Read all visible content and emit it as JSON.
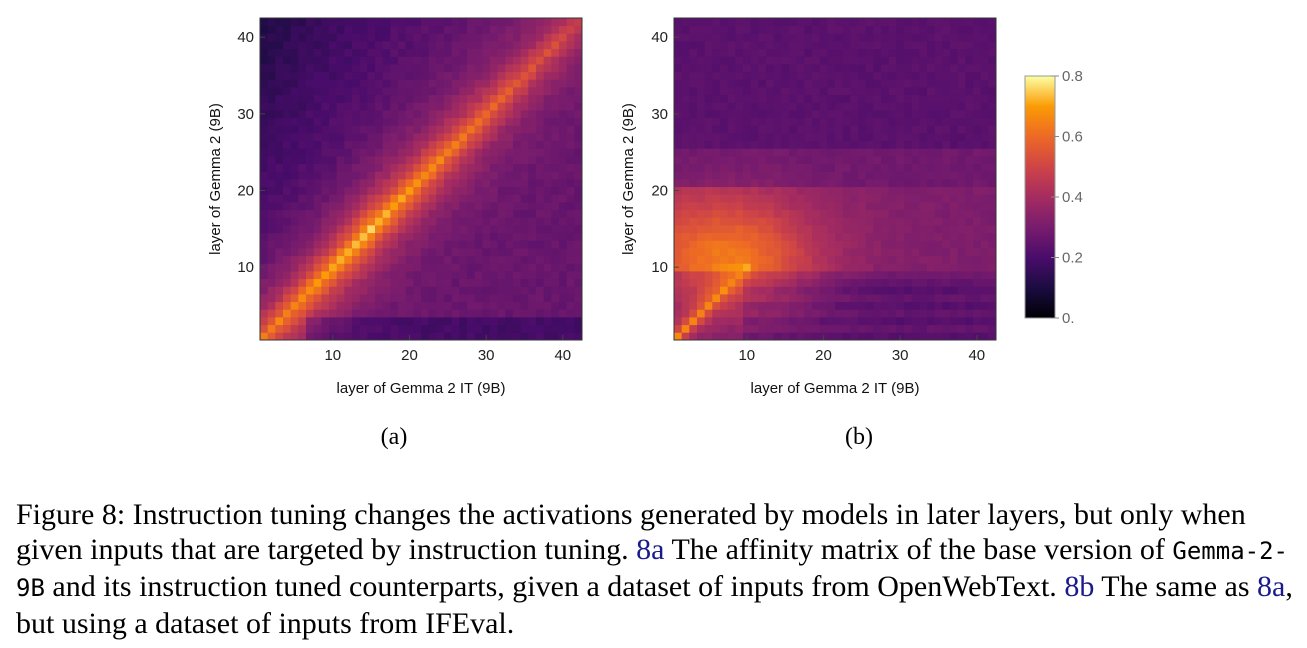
{
  "chart_data": [
    {
      "type": "heatmap",
      "panel": "a",
      "sublabel": "(a)",
      "title": "",
      "xlabel": "layer of Gemma 2 IT (9B)",
      "ylabel": "layer of Gemma 2 (9B)",
      "x_ticks": [
        "10",
        "20",
        "30",
        "40"
      ],
      "y_ticks": [
        "10",
        "20",
        "30",
        "40"
      ],
      "xlim": [
        1,
        42
      ],
      "ylim": [
        1,
        42
      ],
      "colormap": "inferno",
      "value_range": [
        0,
        0.85
      ],
      "description": "Strong bright diagonal (values ~0.6-0.85) from layer 1 to ~40, decaying off-diagonal to ~0.1-0.3; darkest at top-left."
    },
    {
      "type": "heatmap",
      "panel": "b",
      "sublabel": "(b)",
      "title": "",
      "xlabel": "layer of Gemma 2 IT (9B)",
      "ylabel": "layer of Gemma 2 (9B)",
      "x_ticks": [
        "10",
        "20",
        "30",
        "40"
      ],
      "y_ticks": [
        "10",
        "20",
        "30",
        "40"
      ],
      "xlim": [
        1,
        42
      ],
      "ylim": [
        1,
        42
      ],
      "colormap": "inferno",
      "value_range": [
        0,
        0.85
      ],
      "description": "Bright diagonal only in early layers (1-10), warm band around base layers 10-20, values decay to ~0.2-0.3 in later layers."
    }
  ],
  "colorbar": {
    "ticks": [
      "0.",
      "0.2",
      "0.4",
      "0.6",
      "0.8"
    ],
    "tick_values": [
      0,
      0.2,
      0.4,
      0.6,
      0.8
    ],
    "range": [
      0,
      0.8
    ]
  },
  "caption": {
    "prefix": "Figure 8: Instruction tuning changes the activations generated by models in later layers, but only when given inputs that are targeted by instruction tuning. ",
    "ref1": "8a",
    "text1": " The affinity matrix of the base version of ",
    "model_name": "Gemma-2-9B",
    "text2": " and its instruction tuned counterparts, given a dataset of inputs from OpenWebText. ",
    "ref2": "8b",
    "text3": " The same as ",
    "ref3": "8a",
    "text4": ", but using a dataset of inputs from IFEval."
  }
}
